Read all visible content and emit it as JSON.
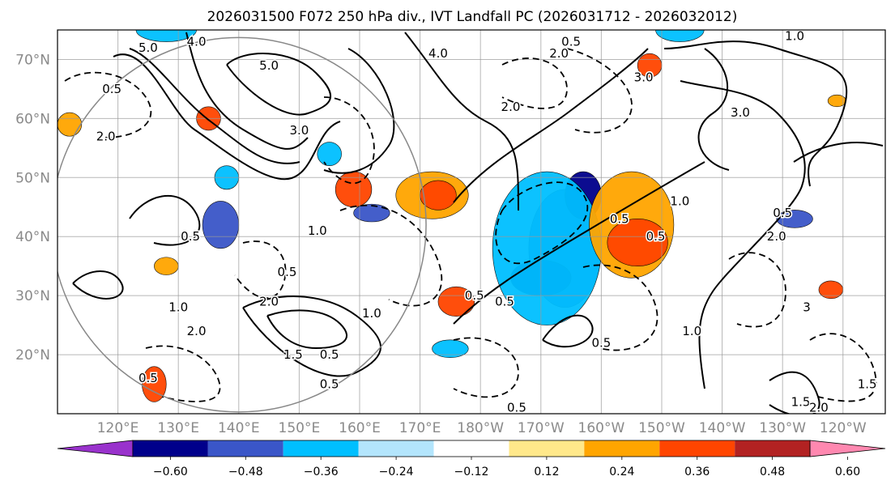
{
  "title": "2026031500 F072 250 hPa div., IVT Landfall PC (2026031712 - 2026032012)",
  "map": {
    "lon_min": 110,
    "lon_max": 247,
    "lat_min": 10,
    "lat_max": 75,
    "lat_ticks": [
      {
        "value": 20,
        "label": "20°N"
      },
      {
        "value": 30,
        "label": "30°N"
      },
      {
        "value": 40,
        "label": "40°N"
      },
      {
        "value": 50,
        "label": "50°N"
      },
      {
        "value": 60,
        "label": "60°N"
      },
      {
        "value": 70,
        "label": "70°N"
      }
    ],
    "lon_ticks": [
      {
        "value": 120,
        "label": "120°E"
      },
      {
        "value": 130,
        "label": "130°E"
      },
      {
        "value": 140,
        "label": "140°E"
      },
      {
        "value": 150,
        "label": "150°E"
      },
      {
        "value": 160,
        "label": "160°E"
      },
      {
        "value": 170,
        "label": "170°E"
      },
      {
        "value": 180,
        "label": "180°W"
      },
      {
        "value": 190,
        "label": "170°W"
      },
      {
        "value": 200,
        "label": "160°W"
      },
      {
        "value": 210,
        "label": "150°W"
      },
      {
        "value": 220,
        "label": "140°W"
      },
      {
        "value": 230,
        "label": "130°W"
      },
      {
        "value": 240,
        "label": "120°W"
      }
    ],
    "circle": {
      "center_lon": 140,
      "center_lat": 42,
      "radius_deg": 31
    }
  },
  "shading": [
    {
      "center_lon": 194,
      "center_lat": 38,
      "rx": 6,
      "ry": 10,
      "level": -0.48,
      "color": "#3a56c8"
    },
    {
      "center_lon": 197,
      "center_lat": 47,
      "rx": 3,
      "ry": 4,
      "level": -0.6,
      "color": "#00008b"
    },
    {
      "center_lon": 190,
      "center_lat": 33,
      "rx": 5,
      "ry": 3,
      "level": -0.6,
      "color": "#00008b"
    },
    {
      "center_lon": 191,
      "center_lat": 38,
      "rx": 9,
      "ry": 13,
      "level": -0.24,
      "color": "#00bfff"
    },
    {
      "center_lon": 205,
      "center_lat": 42,
      "rx": 7,
      "ry": 9,
      "level": 0.36,
      "color": "#ffa500"
    },
    {
      "center_lon": 206,
      "center_lat": 39,
      "rx": 5,
      "ry": 4,
      "level": 0.48,
      "color": "#ff4500"
    },
    {
      "center_lon": 172,
      "center_lat": 47,
      "rx": 6,
      "ry": 4,
      "level": 0.36,
      "color": "#ffa500"
    },
    {
      "center_lon": 173,
      "center_lat": 47,
      "rx": 3,
      "ry": 2.5,
      "level": 0.48,
      "color": "#ff4500"
    },
    {
      "center_lon": 159,
      "center_lat": 48,
      "rx": 3,
      "ry": 3,
      "level": 0.36,
      "color": "#ff4500"
    },
    {
      "center_lon": 137,
      "center_lat": 42,
      "rx": 3,
      "ry": 4,
      "level": -0.48,
      "color": "#3a56c8"
    },
    {
      "center_lon": 138,
      "center_lat": 50,
      "rx": 2,
      "ry": 2,
      "level": -0.24,
      "color": "#00bfff"
    },
    {
      "center_lon": 176,
      "center_lat": 29,
      "rx": 3,
      "ry": 2.5,
      "level": 0.36,
      "color": "#ff4500"
    },
    {
      "center_lon": 126,
      "center_lat": 15,
      "rx": 2,
      "ry": 3,
      "level": 0.48,
      "color": "#ff4500"
    },
    {
      "center_lon": 155,
      "center_lat": 54,
      "rx": 2,
      "ry": 2,
      "level": -0.24,
      "color": "#00bfff"
    },
    {
      "center_lon": 162,
      "center_lat": 44,
      "rx": 3,
      "ry": 1.5,
      "level": -0.36,
      "color": "#3a56c8"
    },
    {
      "center_lon": 175,
      "center_lat": 21,
      "rx": 3,
      "ry": 1.5,
      "level": -0.24,
      "color": "#00bfff"
    },
    {
      "center_lon": 238,
      "center_lat": 31,
      "rx": 2,
      "ry": 1.5,
      "level": 0.36,
      "color": "#ff4500"
    },
    {
      "center_lon": 232,
      "center_lat": 43,
      "rx": 3,
      "ry": 1.5,
      "level": -0.36,
      "color": "#3a56c8"
    },
    {
      "center_lon": 208,
      "center_lat": 69,
      "rx": 2,
      "ry": 2,
      "level": 0.36,
      "color": "#ff4500"
    },
    {
      "center_lon": 135,
      "center_lat": 60,
      "rx": 2,
      "ry": 2,
      "level": 0.48,
      "color": "#ff4500"
    },
    {
      "center_lon": 239,
      "center_lat": 63,
      "rx": 1.5,
      "ry": 1,
      "level": 0.36,
      "color": "#ffa500"
    },
    {
      "center_lon": 112,
      "center_lat": 59,
      "rx": 2,
      "ry": 2,
      "level": 0.36,
      "color": "#ffa500"
    },
    {
      "center_lon": 128,
      "center_lat": 35,
      "rx": 2,
      "ry": 1.5,
      "level": 0.24,
      "color": "#ffa500"
    },
    {
      "center_lon": 128,
      "center_lat": 75,
      "rx": 5,
      "ry": 2,
      "level": -0.24,
      "color": "#00bfff"
    },
    {
      "center_lon": 213,
      "center_lat": 75,
      "rx": 4,
      "ry": 2,
      "level": -0.24,
      "color": "#00bfff"
    }
  ],
  "contours": [
    {
      "label": "5.0",
      "lon": 125,
      "lat": 72
    },
    {
      "label": "4.0",
      "lon": 133,
      "lat": 73
    },
    {
      "label": "5.0",
      "lon": 145,
      "lat": 69
    },
    {
      "label": "4.0",
      "lon": 173,
      "lat": 71
    },
    {
      "label": "2.0",
      "lon": 193,
      "lat": 71
    },
    {
      "label": "0.5",
      "lon": 195,
      "lat": 73
    },
    {
      "label": "1.0",
      "lon": 232,
      "lat": 74
    },
    {
      "label": "3.0",
      "lon": 207,
      "lat": 67
    },
    {
      "label": "3.0",
      "lon": 223,
      "lat": 61
    },
    {
      "label": "0.5",
      "lon": 119,
      "lat": 65
    },
    {
      "label": "2.0",
      "lon": 185,
      "lat": 62
    },
    {
      "label": "2.0",
      "lon": 118,
      "lat": 57
    },
    {
      "label": "3.0",
      "lon": 150,
      "lat": 58
    },
    {
      "label": "1.0",
      "lon": 153,
      "lat": 41
    },
    {
      "label": "0.5",
      "lon": 132,
      "lat": 40
    },
    {
      "label": "0.5",
      "lon": 148,
      "lat": 34
    },
    {
      "label": "2.0",
      "lon": 145,
      "lat": 29
    },
    {
      "label": "2.0",
      "lon": 133,
      "lat": 24
    },
    {
      "label": "1.0",
      "lon": 130,
      "lat": 28
    },
    {
      "label": "1.0",
      "lon": 162,
      "lat": 27
    },
    {
      "label": "1.5",
      "lon": 149,
      "lat": 20
    },
    {
      "label": "0.5",
      "lon": 155,
      "lat": 20
    },
    {
      "label": "0.5",
      "lon": 155,
      "lat": 15
    },
    {
      "label": "0.5",
      "lon": 125,
      "lat": 16
    },
    {
      "label": "0.5",
      "lon": 184,
      "lat": 29
    },
    {
      "label": "0.5",
      "lon": 179,
      "lat": 30
    },
    {
      "label": "0.5",
      "lon": 186,
      "lat": 11
    },
    {
      "label": "0.5",
      "lon": 203,
      "lat": 43
    },
    {
      "label": "0.5",
      "lon": 230,
      "lat": 44
    },
    {
      "label": "1.0",
      "lon": 213,
      "lat": 46
    },
    {
      "label": "0.5",
      "lon": 209,
      "lat": 40
    },
    {
      "label": "2.0",
      "lon": 229,
      "lat": 40
    },
    {
      "label": "1.0",
      "lon": 215,
      "lat": 24
    },
    {
      "label": "1.5",
      "lon": 233,
      "lat": 12
    },
    {
      "label": "2.0",
      "lon": 236,
      "lat": 11
    },
    {
      "label": "1.5",
      "lon": 244,
      "lat": 15
    },
    {
      "label": "3",
      "lon": 234,
      "lat": 28
    },
    {
      "label": "0.5",
      "lon": 200,
      "lat": 22
    }
  ],
  "colorbar": {
    "colors": [
      "#9932cc",
      "#00008b",
      "#3a56c8",
      "#00bfff",
      "#b3e5fc",
      "#ffffff",
      "#ffe88a",
      "#ffa500",
      "#ff4500",
      "#b22222",
      "#ff88b0"
    ],
    "tick_labels": [
      "−0.60",
      "−0.48",
      "−0.36",
      "−0.24",
      "−0.12",
      "0.12",
      "0.24",
      "0.36",
      "0.48",
      "0.60"
    ]
  }
}
